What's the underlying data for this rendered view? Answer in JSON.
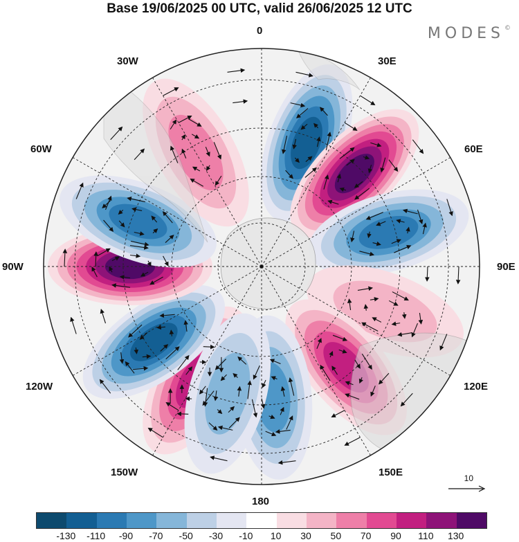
{
  "title": "Base 19/06/2025 00 UTC, valid 26/06/2025 12 UTC",
  "brand": "MODES",
  "brand_mark": "©",
  "longitude_labels": {
    "top": "0",
    "bottom": "180",
    "w30": "30W",
    "e30": "30E",
    "w60": "60W",
    "e60": "60E",
    "w90": "90W",
    "e90": "90E",
    "w120": "120W",
    "e120": "120E",
    "w150": "150W",
    "e150": "150E"
  },
  "reference_vector": {
    "value": "10",
    "icon": "arrow-right-icon"
  },
  "colorbar": {
    "colors": [
      "#0d4a6e",
      "#135f93",
      "#2b7ab3",
      "#4e97c8",
      "#85b6d9",
      "#bdd0e6",
      "#e4e6f2",
      "#ffffff",
      "#f9dde3",
      "#f4b4c6",
      "#ee7fa8",
      "#e24a92",
      "#c21f80",
      "#8e1378",
      "#4f0a66"
    ],
    "tick_labels": [
      "-130",
      "-110",
      "-90",
      "-70",
      "-50",
      "-30",
      "-10",
      "10",
      "30",
      "50",
      "70",
      "90",
      "110",
      "130"
    ]
  },
  "map": {
    "projection": "south-polar-stereographic",
    "field": "anomaly",
    "anomaly_centers": [
      {
        "sign": "negative",
        "level": 110,
        "longitude": 20
      },
      {
        "sign": "positive",
        "level": 130,
        "longitude": 45
      },
      {
        "sign": "negative",
        "level": 90,
        "longitude": 75
      },
      {
        "sign": "positive",
        "level": 30,
        "longitude": 110
      },
      {
        "sign": "positive",
        "level": 90,
        "longitude": 140
      },
      {
        "sign": "negative",
        "level": 70,
        "longitude": 175
      },
      {
        "sign": "positive",
        "level": 90,
        "longitude": -150
      },
      {
        "sign": "negative",
        "level": 110,
        "longitude": -125
      },
      {
        "sign": "positive",
        "level": 130,
        "longitude": -90
      },
      {
        "sign": "negative",
        "level": 90,
        "longitude": -70
      },
      {
        "sign": "positive",
        "level": 50,
        "longitude": -30
      },
      {
        "sign": "negative",
        "level": 50,
        "longitude": -165
      }
    ]
  }
}
